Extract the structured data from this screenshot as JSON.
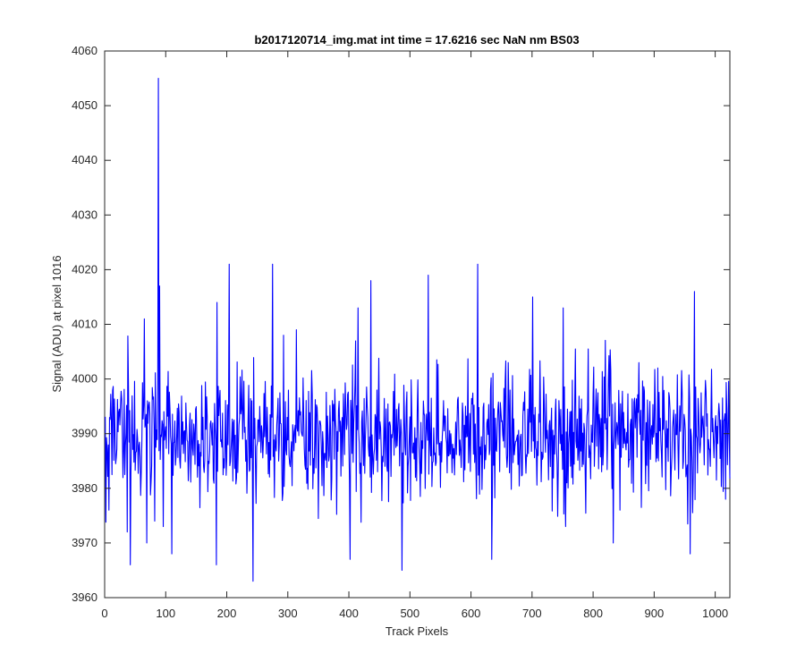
{
  "chart_data": {
    "type": "line",
    "title": "b2017120714_img.mat int time = 17.6216 sec  NaN nm BS03",
    "xlabel": "Track Pixels",
    "ylabel": "Signal (ADU) at pixel 1016",
    "xlim": [
      0,
      1024
    ],
    "ylim": [
      3960,
      4060
    ],
    "xticks": [
      0,
      100,
      200,
      300,
      400,
      500,
      600,
      700,
      800,
      900,
      1000
    ],
    "yticks": [
      3960,
      3970,
      3980,
      3990,
      4000,
      4010,
      4020,
      4030,
      4040,
      4050,
      4060
    ],
    "grid": false,
    "legend": "none",
    "series": [
      {
        "color": "#0000ff",
        "noise_model": {
          "points": 1024,
          "baseline": 3990,
          "spread": 6,
          "seed": 2017120714
        },
        "peaks": [
          {
            "x": 6,
            "y": 3976
          },
          {
            "x": 36,
            "y": 3972
          },
          {
            "x": 41,
            "y": 3966
          },
          {
            "x": 64,
            "y": 4011
          },
          {
            "x": 68,
            "y": 3970
          },
          {
            "x": 81,
            "y": 3974
          },
          {
            "x": 87,
            "y": 4055
          },
          {
            "x": 89,
            "y": 4017
          },
          {
            "x": 95,
            "y": 3973
          },
          {
            "x": 109,
            "y": 3968
          },
          {
            "x": 182,
            "y": 3966
          },
          {
            "x": 183,
            "y": 4014
          },
          {
            "x": 203,
            "y": 4021
          },
          {
            "x": 242,
            "y": 3963
          },
          {
            "x": 274,
            "y": 4021
          },
          {
            "x": 292,
            "y": 4008
          },
          {
            "x": 401,
            "y": 3967
          },
          {
            "x": 414,
            "y": 4013
          },
          {
            "x": 435,
            "y": 4018
          },
          {
            "x": 486,
            "y": 3965
          },
          {
            "x": 529,
            "y": 4019
          },
          {
            "x": 610,
            "y": 4021
          },
          {
            "x": 633,
            "y": 3967
          },
          {
            "x": 660,
            "y": 4003
          },
          {
            "x": 700,
            "y": 4015
          },
          {
            "x": 750,
            "y": 4013
          },
          {
            "x": 832,
            "y": 3970
          },
          {
            "x": 958,
            "y": 3968
          },
          {
            "x": 965,
            "y": 4016
          },
          {
            "x": 1016,
            "y": 3978
          }
        ]
      }
    ]
  }
}
